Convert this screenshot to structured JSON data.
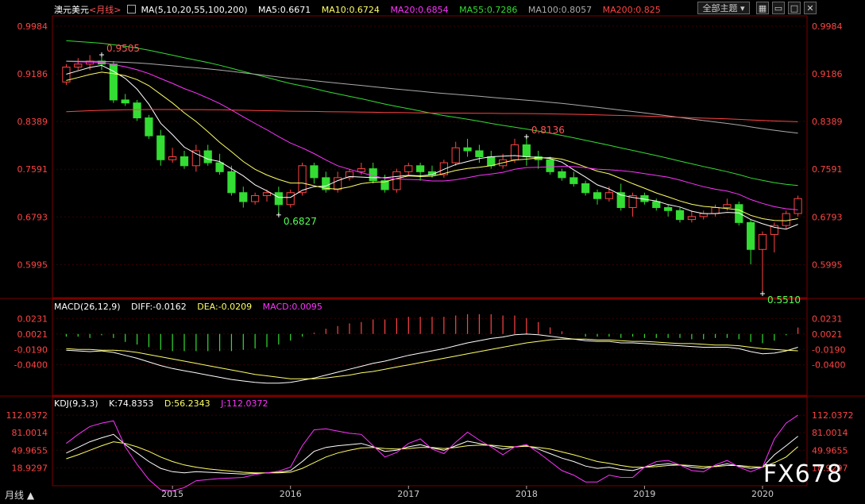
{
  "header": {
    "instrument": "澳元美元",
    "period_tag": "<月线>",
    "ma_label": "MA(5,10,20,55,100,200)",
    "ma5": "MA5:0.6671",
    "ma10": "MA10:0.6724",
    "ma20": "MA20:0.6854",
    "ma55": "MA55:0.7286",
    "ma100": "MA100:0.8057",
    "ma200": "MA200:0.825",
    "theme_button": "全部主题",
    "colors": {
      "ma5": "#ffffff",
      "ma10": "#ffff66",
      "ma20": "#ff33ff",
      "ma55": "#33dd33",
      "ma100": "#aaaaaa",
      "ma200": "#ff4444"
    }
  },
  "macd_header": {
    "label": "MACD(26,12,9)",
    "diff": "DIFF:-0.0162",
    "dea": "DEA:-0.0209",
    "macd": "MACD:0.0095"
  },
  "kdj_header": {
    "label": "KDJ(9,3,3)",
    "k": "K:74.8353",
    "d": "D:56.2343",
    "j": "J:112.0372"
  },
  "footer": {
    "period": "月线 ▲",
    "brand": "FX678"
  },
  "chart_data": [
    {
      "type": "candlestick",
      "title": "澳元美元 月线",
      "y_ticks": [
        "0.9984",
        "0.9186",
        "0.8389",
        "0.7591",
        "0.6793",
        "0.5995"
      ],
      "ylim": [
        0.555,
        1.005
      ],
      "x_tick_labels": [
        "2015",
        "2016",
        "2017",
        "2018",
        "2019",
        "2020"
      ],
      "x_tick_index": [
        9,
        19,
        29,
        39,
        49,
        59
      ],
      "annotations": [
        {
          "text": "0.9505",
          "index": 3,
          "value": 0.9505,
          "color": "#ff5555"
        },
        {
          "text": "0.6827",
          "index": 18,
          "value": 0.6827,
          "color": "#55ff55"
        },
        {
          "text": "0.8136",
          "index": 39,
          "value": 0.8136,
          "color": "#ff5555"
        },
        {
          "text": "0.5510",
          "index": 59,
          "value": 0.551,
          "color": "#55ff55"
        }
      ],
      "candles": [
        [
          0.905,
          0.93,
          0.9,
          0.935
        ],
        [
          0.93,
          0.935,
          0.925,
          0.945
        ],
        [
          0.935,
          0.94,
          0.925,
          0.95
        ],
        [
          0.94,
          0.935,
          0.925,
          0.9505
        ],
        [
          0.935,
          0.875,
          0.87,
          0.94
        ],
        [
          0.875,
          0.87,
          0.865,
          0.885
        ],
        [
          0.87,
          0.845,
          0.84,
          0.875
        ],
        [
          0.845,
          0.815,
          0.81,
          0.85
        ],
        [
          0.815,
          0.775,
          0.765,
          0.825
        ],
        [
          0.775,
          0.78,
          0.77,
          0.795
        ],
        [
          0.78,
          0.765,
          0.76,
          0.79
        ],
        [
          0.765,
          0.79,
          0.755,
          0.8
        ],
        [
          0.79,
          0.77,
          0.765,
          0.8
        ],
        [
          0.77,
          0.755,
          0.75,
          0.785
        ],
        [
          0.755,
          0.72,
          0.715,
          0.765
        ],
        [
          0.72,
          0.705,
          0.695,
          0.73
        ],
        [
          0.705,
          0.715,
          0.7,
          0.72
        ],
        [
          0.715,
          0.72,
          0.705,
          0.725
        ],
        [
          0.72,
          0.7,
          0.6827,
          0.73
        ],
        [
          0.7,
          0.72,
          0.695,
          0.725
        ],
        [
          0.72,
          0.765,
          0.715,
          0.77
        ],
        [
          0.765,
          0.745,
          0.735,
          0.77
        ],
        [
          0.745,
          0.725,
          0.72,
          0.755
        ],
        [
          0.725,
          0.745,
          0.72,
          0.755
        ],
        [
          0.745,
          0.755,
          0.74,
          0.76
        ],
        [
          0.755,
          0.76,
          0.75,
          0.77
        ],
        [
          0.76,
          0.74,
          0.735,
          0.77
        ],
        [
          0.74,
          0.725,
          0.72,
          0.75
        ],
        [
          0.725,
          0.755,
          0.72,
          0.76
        ],
        [
          0.755,
          0.765,
          0.75,
          0.77
        ],
        [
          0.765,
          0.755,
          0.74,
          0.77
        ],
        [
          0.755,
          0.75,
          0.745,
          0.765
        ],
        [
          0.75,
          0.77,
          0.745,
          0.775
        ],
        [
          0.77,
          0.795,
          0.765,
          0.805
        ],
        [
          0.795,
          0.79,
          0.78,
          0.81
        ],
        [
          0.79,
          0.78,
          0.77,
          0.8
        ],
        [
          0.78,
          0.765,
          0.76,
          0.79
        ],
        [
          0.765,
          0.775,
          0.76,
          0.785
        ],
        [
          0.775,
          0.8,
          0.77,
          0.81
        ],
        [
          0.8,
          0.78,
          0.765,
          0.8136
        ],
        [
          0.78,
          0.775,
          0.76,
          0.79
        ],
        [
          0.775,
          0.755,
          0.75,
          0.78
        ],
        [
          0.755,
          0.745,
          0.74,
          0.76
        ],
        [
          0.745,
          0.735,
          0.73,
          0.755
        ],
        [
          0.735,
          0.72,
          0.715,
          0.74
        ],
        [
          0.72,
          0.71,
          0.7,
          0.725
        ],
        [
          0.71,
          0.72,
          0.705,
          0.73
        ],
        [
          0.72,
          0.695,
          0.69,
          0.735
        ],
        [
          0.695,
          0.715,
          0.68,
          0.72
        ],
        [
          0.715,
          0.705,
          0.7,
          0.72
        ],
        [
          0.705,
          0.695,
          0.69,
          0.71
        ],
        [
          0.695,
          0.69,
          0.68,
          0.7
        ],
        [
          0.69,
          0.675,
          0.67,
          0.695
        ],
        [
          0.675,
          0.68,
          0.67,
          0.69
        ],
        [
          0.68,
          0.685,
          0.675,
          0.69
        ],
        [
          0.685,
          0.695,
          0.68,
          0.7
        ],
        [
          0.695,
          0.7,
          0.69,
          0.71
        ],
        [
          0.7,
          0.67,
          0.665,
          0.705
        ],
        [
          0.67,
          0.625,
          0.6,
          0.675
        ],
        [
          0.625,
          0.65,
          0.551,
          0.655
        ],
        [
          0.65,
          0.665,
          0.62,
          0.67
        ],
        [
          0.665,
          0.685,
          0.66,
          0.69
        ],
        [
          0.685,
          0.71,
          0.68,
          0.715
        ]
      ]
    },
    {
      "type": "line",
      "title": "MACD(26,12,9)",
      "y_ticks": [
        "0.0231",
        "0.0021",
        "-0.0190",
        "-0.0400"
      ],
      "ylim": [
        -0.075,
        0.03
      ],
      "series": [
        {
          "name": "DIFF",
          "color": "#ffffff",
          "values": [
            -0.02,
            -0.021,
            -0.022,
            -0.021,
            -0.023,
            -0.027,
            -0.031,
            -0.036,
            -0.041,
            -0.045,
            -0.048,
            -0.051,
            -0.054,
            -0.057,
            -0.06,
            -0.062,
            -0.064,
            -0.065,
            -0.065,
            -0.064,
            -0.061,
            -0.058,
            -0.054,
            -0.05,
            -0.046,
            -0.042,
            -0.038,
            -0.035,
            -0.031,
            -0.027,
            -0.024,
            -0.021,
            -0.018,
            -0.014,
            -0.01,
            -0.007,
            -0.004,
            -0.002,
            0.001,
            0.002,
            0.001,
            -0.001,
            -0.003,
            -0.005,
            -0.007,
            -0.008,
            -0.008,
            -0.01,
            -0.01,
            -0.011,
            -0.012,
            -0.013,
            -0.014,
            -0.015,
            -0.016,
            -0.016,
            -0.016,
            -0.018,
            -0.022,
            -0.025,
            -0.024,
            -0.021,
            -0.016
          ]
        },
        {
          "name": "DEA",
          "color": "#ffff66",
          "values": [
            -0.018,
            -0.019,
            -0.019,
            -0.02,
            -0.02,
            -0.021,
            -0.023,
            -0.026,
            -0.029,
            -0.032,
            -0.035,
            -0.038,
            -0.041,
            -0.044,
            -0.047,
            -0.05,
            -0.053,
            -0.055,
            -0.057,
            -0.059,
            -0.059,
            -0.059,
            -0.058,
            -0.056,
            -0.054,
            -0.051,
            -0.049,
            -0.046,
            -0.043,
            -0.04,
            -0.037,
            -0.034,
            -0.031,
            -0.028,
            -0.025,
            -0.022,
            -0.019,
            -0.016,
            -0.013,
            -0.01,
            -0.008,
            -0.006,
            -0.005,
            -0.005,
            -0.005,
            -0.006,
            -0.006,
            -0.007,
            -0.008,
            -0.008,
            -0.009,
            -0.01,
            -0.011,
            -0.011,
            -0.012,
            -0.013,
            -0.013,
            -0.014,
            -0.016,
            -0.018,
            -0.019,
            -0.02,
            -0.0209
          ]
        }
      ],
      "histogram": {
        "name": "MACD",
        "up_color": "#ff4444",
        "down_color": "#33dd33"
      }
    },
    {
      "type": "line",
      "title": "KDJ(9,3,3)",
      "y_ticks": [
        "112.0372",
        "81.0014",
        "49.9655",
        "18.9297"
      ],
      "ylim": [
        -10,
        122
      ],
      "series": [
        {
          "name": "K",
          "color": "#ffffff",
          "values": [
            45,
            55,
            65,
            72,
            78,
            60,
            45,
            30,
            18,
            12,
            10,
            12,
            11,
            10,
            9,
            8,
            9,
            10,
            11,
            14,
            30,
            48,
            55,
            58,
            60,
            62,
            56,
            48,
            50,
            56,
            60,
            54,
            50,
            58,
            66,
            62,
            58,
            52,
            56,
            58,
            52,
            44,
            36,
            30,
            22,
            18,
            20,
            16,
            14,
            20,
            24,
            26,
            24,
            20,
            18,
            22,
            26,
            22,
            18,
            20,
            42,
            58,
            74.8353
          ]
        },
        {
          "name": "D",
          "color": "#ffff66",
          "values": [
            35,
            42,
            50,
            58,
            65,
            62,
            56,
            48,
            38,
            30,
            24,
            20,
            17,
            15,
            13,
            11,
            10,
            10,
            10,
            11,
            18,
            28,
            38,
            45,
            50,
            54,
            55,
            53,
            52,
            53,
            55,
            55,
            53,
            55,
            58,
            59,
            59,
            57,
            56,
            57,
            55,
            52,
            47,
            42,
            36,
            30,
            27,
            23,
            20,
            20,
            21,
            23,
            24,
            23,
            21,
            21,
            23,
            23,
            21,
            20,
            28,
            38,
            56.2343
          ]
        },
        {
          "name": "J",
          "color": "#ff33ff",
          "values": [
            62,
            78,
            92,
            98,
            102,
            56,
            25,
            -2,
            -20,
            -22,
            -16,
            -4,
            -2,
            0,
            1,
            2,
            7,
            10,
            13,
            20,
            58,
            86,
            88,
            84,
            80,
            78,
            58,
            38,
            46,
            62,
            70,
            52,
            44,
            64,
            82,
            68,
            56,
            42,
            56,
            60,
            46,
            30,
            14,
            6,
            -6,
            -6,
            6,
            2,
            2,
            20,
            30,
            32,
            24,
            14,
            12,
            24,
            32,
            20,
            12,
            20,
            70,
            98,
            112.0372
          ]
        }
      ]
    }
  ]
}
